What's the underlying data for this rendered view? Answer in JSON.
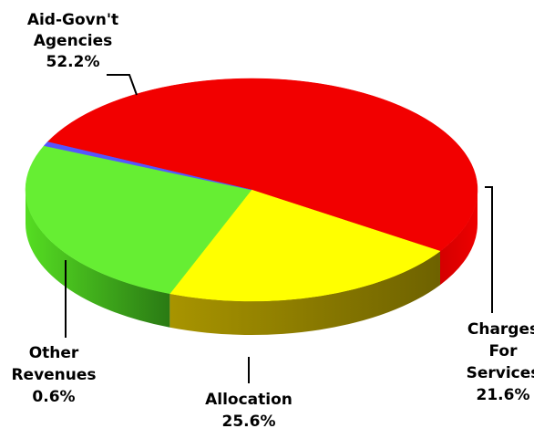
{
  "chart_data": {
    "type": "pie",
    "style": "3d",
    "title": "",
    "legend": "none",
    "slices": [
      {
        "name": "Aid-Govn't Agencies",
        "label_lines": [
          "Aid-Govn't",
          "Agencies"
        ],
        "value": 52.2,
        "value_label": "52.2%",
        "color": "#f20000",
        "side_color": "#c00000"
      },
      {
        "name": "Charges For Services",
        "label_lines": [
          "Charges",
          "For",
          "Services"
        ],
        "value": 21.6,
        "value_label": "21.6%",
        "color": "#ffff00",
        "side_color": "#8a7a00"
      },
      {
        "name": "Allocation",
        "label_lines": [
          "Allocation"
        ],
        "value": 25.6,
        "value_label": "25.6%",
        "color": "#66ee33",
        "side_color": "#3a9a1a"
      },
      {
        "name": "Other Revenues",
        "label_lines": [
          "Other",
          "Revenues"
        ],
        "value": 0.6,
        "value_label": "0.6%",
        "color": "#5555ff",
        "side_color": "#3333cc"
      }
    ]
  }
}
